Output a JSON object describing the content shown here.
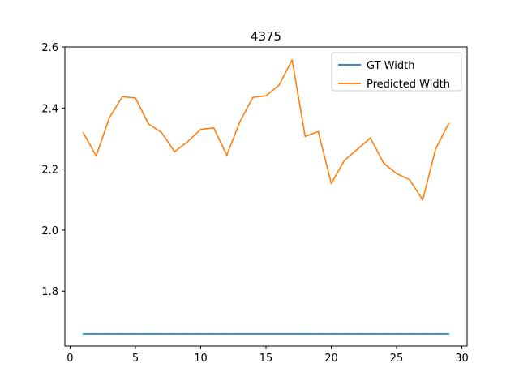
{
  "chart_data": {
    "type": "line",
    "title": "4375",
    "xlabel": "",
    "ylabel": "",
    "xlim": [
      -0.4,
      30.4
    ],
    "ylim": [
      1.62,
      2.6
    ],
    "xticks": [
      0,
      5,
      10,
      15,
      20,
      25,
      30
    ],
    "yticks": [
      1.8,
      2.0,
      2.2,
      2.4,
      2.6
    ],
    "ytick_labels": [
      "1.8",
      "2.0",
      "2.2",
      "2.4",
      "2.6"
    ],
    "grid": false,
    "legend_position": "top-right",
    "x": [
      1,
      2,
      3,
      4,
      5,
      6,
      7,
      8,
      9,
      10,
      11,
      12,
      13,
      14,
      15,
      16,
      17,
      18,
      19,
      20,
      21,
      22,
      23,
      24,
      25,
      26,
      27,
      28,
      29
    ],
    "series": [
      {
        "name": "GT Width",
        "color": "#1f77b4",
        "values": [
          1.66,
          1.66,
          1.66,
          1.66,
          1.66,
          1.66,
          1.66,
          1.66,
          1.66,
          1.66,
          1.66,
          1.66,
          1.66,
          1.66,
          1.66,
          1.66,
          1.66,
          1.66,
          1.66,
          1.66,
          1.66,
          1.66,
          1.66,
          1.66,
          1.66,
          1.66,
          1.66,
          1.66,
          1.66
        ]
      },
      {
        "name": "Predicted Width",
        "color": "#ff7f0e",
        "values": [
          2.32,
          2.243,
          2.368,
          2.437,
          2.433,
          2.348,
          2.32,
          2.257,
          2.29,
          2.33,
          2.335,
          2.245,
          2.355,
          2.435,
          2.44,
          2.475,
          2.558,
          2.307,
          2.323,
          2.153,
          2.228,
          2.265,
          2.302,
          2.22,
          2.185,
          2.165,
          2.099,
          2.267,
          2.35
        ]
      }
    ]
  }
}
